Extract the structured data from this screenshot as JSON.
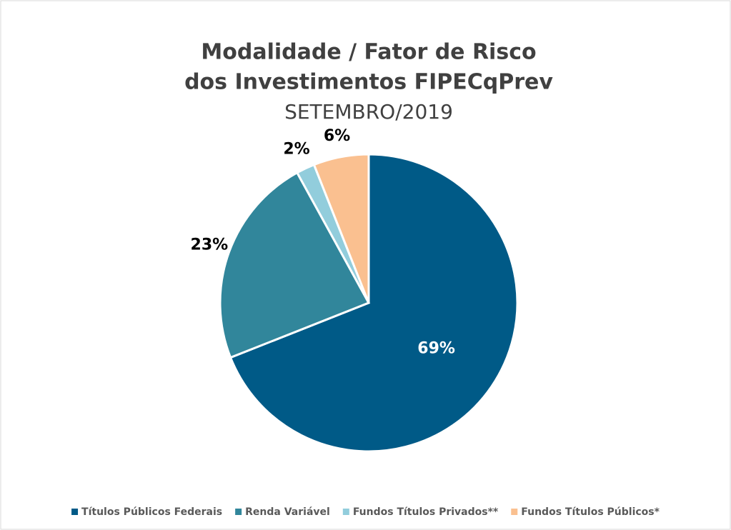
{
  "chart_data": {
    "type": "pie",
    "title": [
      "Modalidade / Fator de Risco",
      "dos Investimentos FIPECqPrev"
    ],
    "subtitle": "SETEMBRO/2019",
    "categories": [
      "Títulos Públicos Federais",
      "Renda Variável",
      "Fundos Títulos Privados**",
      "Fundos Títulos Públicos*"
    ],
    "values": [
      69,
      23,
      2,
      6
    ],
    "value_labels": [
      "69%",
      "23%",
      "2%",
      "6%"
    ],
    "colors": [
      "#005a87",
      "#31869b",
      "#92cddc",
      "#fac090"
    ],
    "legend": "bottom"
  }
}
